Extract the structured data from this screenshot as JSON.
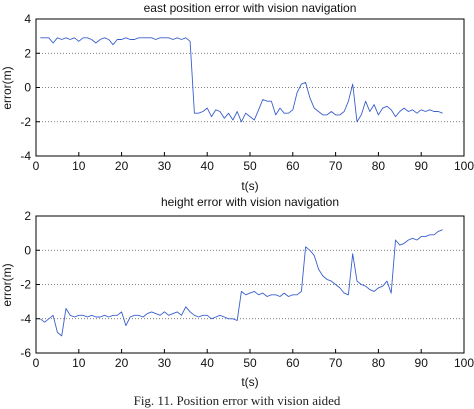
{
  "figure_caption": "Fig. 11. Position error with vision aided",
  "chart_data": [
    {
      "type": "line",
      "title": "east position error with vision navigation",
      "xlabel": "t(s)",
      "ylabel": "error(m)",
      "xlim": [
        0,
        100
      ],
      "ylim": [
        -4,
        4
      ],
      "xticks": [
        0,
        10,
        20,
        30,
        40,
        50,
        60,
        70,
        80,
        90,
        100
      ],
      "yticks": [
        -4,
        -2,
        0,
        2,
        4
      ],
      "grid": "horizontal dotted",
      "series": [
        {
          "color": "#3a5fcd",
          "x": [
            1,
            2,
            3,
            4,
            5,
            6,
            7,
            8,
            9,
            10,
            11,
            12,
            13,
            14,
            15,
            16,
            17,
            18,
            19,
            20,
            21,
            22,
            23,
            24,
            25,
            26,
            27,
            28,
            29,
            30,
            31,
            32,
            33,
            34,
            35,
            36,
            37,
            38,
            39,
            40,
            41,
            42,
            43,
            44,
            45,
            46,
            47,
            48,
            49,
            50,
            51,
            52,
            53,
            54,
            55,
            56,
            57,
            58,
            59,
            60,
            61,
            62,
            63,
            64,
            65,
            66,
            67,
            68,
            69,
            70,
            71,
            72,
            73,
            74,
            75,
            76,
            77,
            78,
            79,
            80,
            81,
            82,
            83,
            84,
            85,
            86,
            87,
            88,
            89,
            90,
            91,
            92,
            93,
            94,
            95
          ],
          "y": [
            2.9,
            2.9,
            2.9,
            2.6,
            2.9,
            2.8,
            2.9,
            2.8,
            2.9,
            2.7,
            2.9,
            2.9,
            2.8,
            2.6,
            2.8,
            2.9,
            2.8,
            2.5,
            2.8,
            2.8,
            2.9,
            2.8,
            2.8,
            2.9,
            2.9,
            2.9,
            2.9,
            2.8,
            2.9,
            2.9,
            2.9,
            2.8,
            2.9,
            2.8,
            2.9,
            2.7,
            -1.5,
            -1.5,
            -1.4,
            -1.2,
            -1.7,
            -1.3,
            -1.4,
            -1.8,
            -1.5,
            -1.9,
            -1.4,
            -2.0,
            -1.5,
            -1.7,
            -1.9,
            -1.3,
            -0.7,
            -0.8,
            -0.8,
            -1.6,
            -1.2,
            -1.5,
            -1.5,
            -1.3,
            -0.3,
            0.2,
            0.3,
            -0.6,
            -1.2,
            -1.4,
            -1.6,
            -1.6,
            -1.4,
            -1.6,
            -1.6,
            -1.4,
            -0.8,
            0.2,
            -2.0,
            -1.6,
            -0.8,
            -1.4,
            -1.0,
            -1.6,
            -1.2,
            -1.1,
            -1.3,
            -1.7,
            -1.4,
            -1.2,
            -1.4,
            -1.3,
            -1.5,
            -1.3,
            -1.4,
            -1.3,
            -1.4,
            -1.4,
            -1.5
          ]
        }
      ]
    },
    {
      "type": "line",
      "title": "height error with vision navigation",
      "xlabel": "t(s)",
      "ylabel": "error(m)",
      "xlim": [
        0,
        100
      ],
      "ylim": [
        -6,
        2
      ],
      "xticks": [
        0,
        10,
        20,
        30,
        40,
        50,
        60,
        70,
        80,
        90,
        100
      ],
      "yticks": [
        -6,
        -4,
        -2,
        0,
        2
      ],
      "grid": "horizontal dotted",
      "series": [
        {
          "color": "#3a5fcd",
          "x": [
            1,
            2,
            3,
            4,
            5,
            6,
            7,
            8,
            9,
            10,
            11,
            12,
            13,
            14,
            15,
            16,
            17,
            18,
            19,
            20,
            21,
            22,
            23,
            24,
            25,
            26,
            27,
            28,
            29,
            30,
            31,
            32,
            33,
            34,
            35,
            36,
            37,
            38,
            39,
            40,
            41,
            42,
            43,
            44,
            45,
            46,
            47,
            48,
            49,
            50,
            51,
            52,
            53,
            54,
            55,
            56,
            57,
            58,
            59,
            60,
            61,
            62,
            63,
            64,
            65,
            66,
            67,
            68,
            69,
            70,
            71,
            72,
            73,
            74,
            75,
            76,
            77,
            78,
            79,
            80,
            81,
            82,
            83,
            84,
            85,
            86,
            87,
            88,
            89,
            90,
            91,
            92,
            93,
            94,
            95
          ],
          "y": [
            -4.0,
            -4.2,
            -4.0,
            -3.8,
            -4.8,
            -5.0,
            -3.4,
            -3.8,
            -3.9,
            -3.8,
            -3.8,
            -3.9,
            -3.8,
            -3.9,
            -3.9,
            -3.8,
            -3.9,
            -3.8,
            -3.8,
            -3.6,
            -4.4,
            -3.9,
            -3.8,
            -3.8,
            -3.9,
            -3.7,
            -3.6,
            -3.7,
            -3.8,
            -3.6,
            -3.8,
            -3.7,
            -3.6,
            -3.8,
            -3.3,
            -3.6,
            -3.8,
            -3.9,
            -3.8,
            -3.8,
            -4.0,
            -3.9,
            -3.8,
            -3.9,
            -4.0,
            -4.0,
            -4.1,
            -2.4,
            -2.6,
            -2.5,
            -2.4,
            -2.6,
            -2.5,
            -2.7,
            -2.6,
            -2.6,
            -2.7,
            -2.5,
            -2.7,
            -2.6,
            -2.6,
            -2.4,
            0.2,
            0.0,
            -0.3,
            -1.1,
            -1.5,
            -1.7,
            -1.8,
            -2.0,
            -2.2,
            -2.5,
            -2.6,
            -0.2,
            -1.8,
            -2.0,
            -2.1,
            -2.3,
            -2.4,
            -2.2,
            -2.1,
            -1.8,
            -2.5,
            0.6,
            0.3,
            0.4,
            0.6,
            0.7,
            0.6,
            0.8,
            0.8,
            0.9,
            0.9,
            1.1,
            1.2
          ]
        }
      ]
    }
  ]
}
